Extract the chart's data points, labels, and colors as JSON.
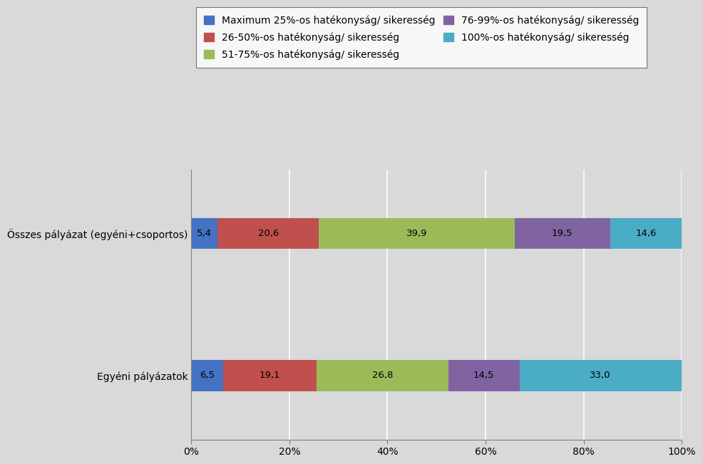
{
  "categories": [
    "Összes pályázat (egyéni+csoportos)",
    "Egyéni pályázatok"
  ],
  "series": [
    {
      "label": "Maximum 25%-os hatékonyság/ sikeresség",
      "color": "#4472C4",
      "values": [
        5.4,
        6.5
      ]
    },
    {
      "label": "26-50%-os hatékonyság/ sikeresség",
      "color": "#C0504D",
      "values": [
        20.6,
        19.1
      ]
    },
    {
      "label": "51-75%-os hatékonyság/ sikeresség",
      "color": "#9BBB59",
      "values": [
        39.9,
        26.8
      ]
    },
    {
      "label": "76-99%-os hatékonyság/ sikeresség",
      "color": "#8064A2",
      "values": [
        19.5,
        14.5
      ]
    },
    {
      "label": "100%-os hatékonyság/ sikeresség",
      "color": "#4BACC6",
      "values": [
        14.6,
        33.0
      ]
    }
  ],
  "background_color": "#D9D9D9",
  "plot_bg_color": "#D9D9D9",
  "legend_box_color": "#FFFFFF",
  "legend_border_color": "#595959",
  "bar_height": 0.22,
  "xlim": [
    0,
    100
  ],
  "fontsize_labels": 10,
  "fontsize_ticks": 10,
  "fontsize_legend": 10
}
